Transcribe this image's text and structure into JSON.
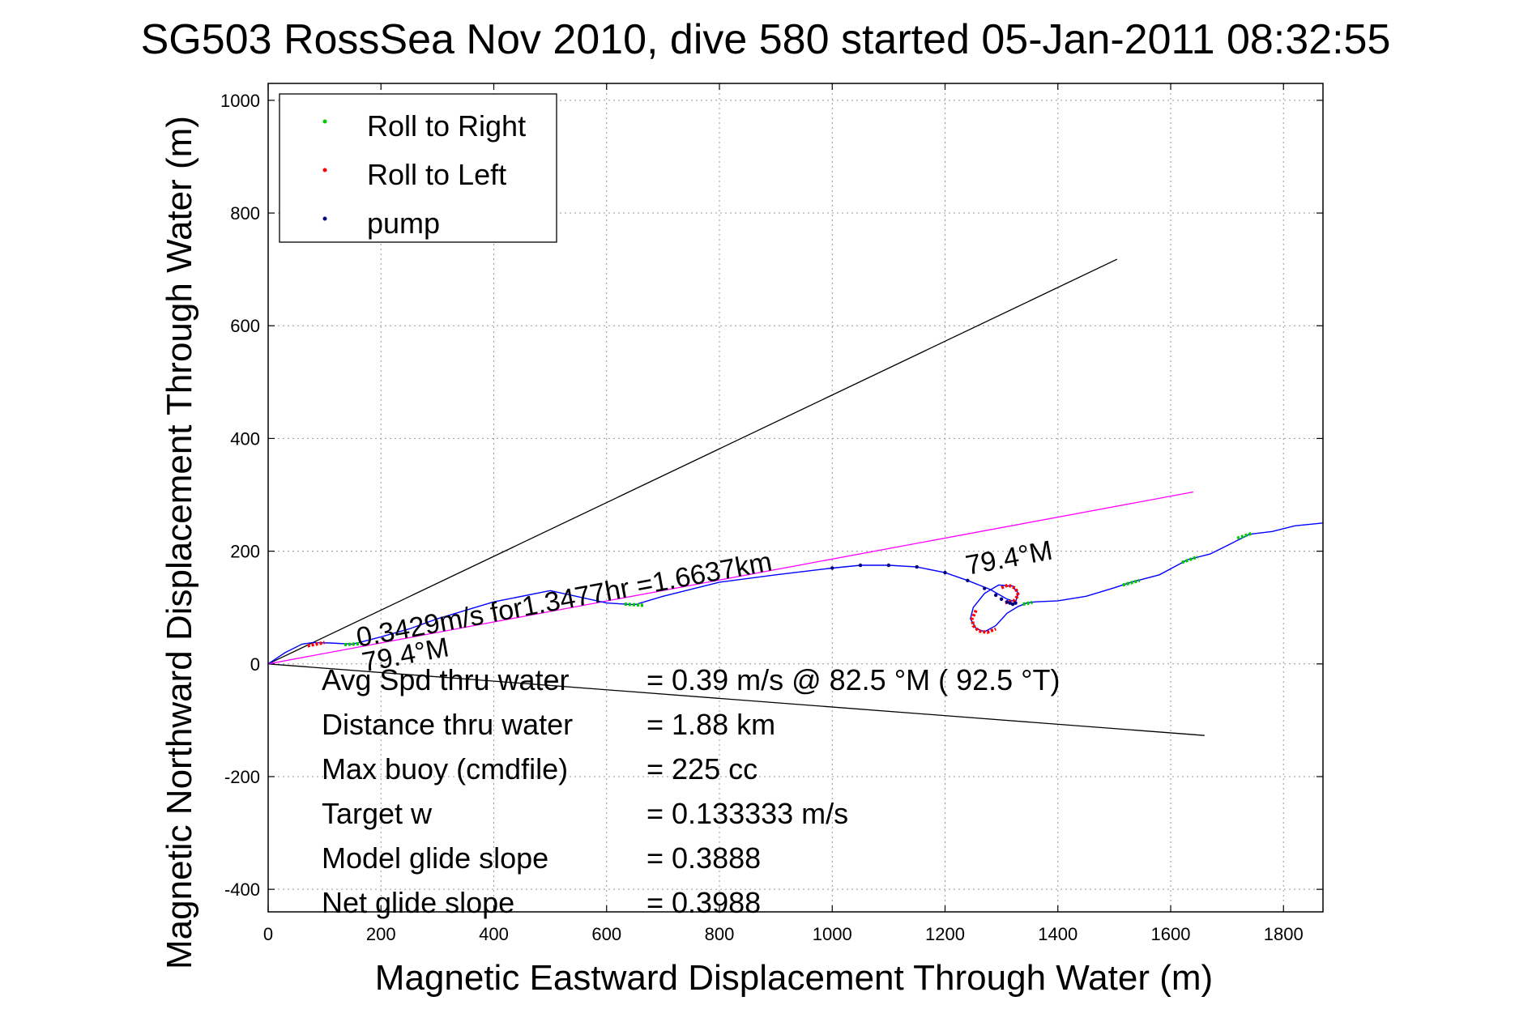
{
  "chart_data": {
    "type": "line",
    "title": "SG503 RossSea Nov 2010, dive 580 started 05-Jan-2011 08:32:55",
    "xlabel": "Magnetic Eastward Displacement Through Water (m)",
    "ylabel": "Magnetic Northward Displacement Through Water (m)",
    "xlim": [
      0,
      1870
    ],
    "ylim": [
      -440,
      1030
    ],
    "xticks": [
      0,
      200,
      400,
      600,
      800,
      1000,
      1200,
      1400,
      1600,
      1800
    ],
    "yticks": [
      -400,
      -200,
      0,
      200,
      400,
      600,
      800,
      1000
    ],
    "xtick_labels": [
      "0",
      "200",
      "400",
      "600",
      "800",
      "1000",
      "1200",
      "1400",
      "1600",
      "1800"
    ],
    "ytick_labels": [
      "-400",
      "-200",
      "0",
      "200",
      "400",
      "600",
      "800",
      "1000"
    ],
    "grid": true,
    "legend": {
      "position": "top-left",
      "entries": [
        {
          "label": "Roll to Right",
          "color": "#00cc00"
        },
        {
          "label": "Roll to Left",
          "color": "#ff0000"
        },
        {
          "label": "pump",
          "color": "#000080"
        }
      ]
    },
    "track": {
      "color": "#0000ff",
      "x": [
        0,
        30,
        60,
        80,
        110,
        150,
        200,
        250,
        300,
        400,
        500,
        600,
        650,
        700,
        800,
        900,
        1000,
        1050,
        1100,
        1150,
        1200,
        1240,
        1280,
        1310,
        1325,
        1330,
        1320,
        1295,
        1270,
        1250,
        1245,
        1255,
        1270,
        1290,
        1310,
        1330,
        1345,
        1360,
        1400,
        1450,
        1500,
        1530,
        1580,
        1630,
        1670,
        1700,
        1740,
        1780,
        1820,
        1870
      ],
      "y": [
        0,
        20,
        35,
        38,
        37,
        35,
        48,
        62,
        80,
        110,
        130,
        108,
        105,
        120,
        145,
        158,
        170,
        175,
        175,
        172,
        162,
        148,
        132,
        115,
        110,
        125,
        138,
        140,
        125,
        100,
        80,
        63,
        57,
        68,
        90,
        102,
        108,
        110,
        112,
        120,
        135,
        145,
        158,
        185,
        195,
        210,
        230,
        235,
        245,
        250
      ]
    },
    "roll_right_segments": [
      {
        "x": [
          135,
          165
        ],
        "y": [
          34,
          36
        ]
      },
      {
        "x": [
          632,
          665
        ],
        "y": [
          106,
          104
        ]
      },
      {
        "x": [
          1338,
          1355
        ],
        "y": [
          106,
          109
        ]
      },
      {
        "x": [
          1515,
          1545
        ],
        "y": [
          140,
          148
        ]
      },
      {
        "x": [
          1620,
          1648
        ],
        "y": [
          180,
          190
        ]
      },
      {
        "x": [
          1718,
          1745
        ],
        "y": [
          223,
          232
        ]
      }
    ],
    "roll_left_segments": [
      {
        "x": [
          70,
          100
        ],
        "y": [
          32,
          38
        ]
      },
      {
        "x": [
          1300,
          1312,
          1325,
          1330,
          1322,
          1305
        ],
        "y": [
          135,
          140,
          134,
          122,
          112,
          108
        ]
      },
      {
        "x": [
          1255,
          1248,
          1250,
          1260,
          1275,
          1290
        ],
        "y": [
          95,
          80,
          68,
          58,
          56,
          62
        ]
      }
    ],
    "pump_points": {
      "x": [
        1000,
        1050,
        1100,
        1150,
        1200,
        1240,
        1270,
        1290,
        1300,
        1310,
        1315,
        1320,
        1325
      ],
      "y": [
        170,
        175,
        175,
        172,
        162,
        148,
        134,
        122,
        115,
        110,
        108,
        106,
        108
      ]
    },
    "reference_lines": [
      {
        "color": "#000000",
        "x": [
          0,
          1505
        ],
        "y": [
          0,
          718
        ]
      },
      {
        "color": "#000000",
        "x": [
          0,
          1660
        ],
        "y": [
          0,
          -127
        ]
      },
      {
        "color": "#ff00ff",
        "x": [
          0,
          1640
        ],
        "y": [
          0,
          305
        ]
      }
    ],
    "annotations": [
      {
        "text": "0.3429m/s for1.3477hr =1.6637km",
        "x": 160,
        "y": 30,
        "angle_data": 10.5
      },
      {
        "text": "79.4°M",
        "x": 1240,
        "y": 158,
        "angle_data": 10.5
      },
      {
        "text": "79.4°M",
        "x": 170,
        "y": -14,
        "angle_data": 10.5
      }
    ],
    "stats": [
      {
        "label": "Avg Spd thru water",
        "value": "=  0.39 m/s @  82.5 °M ( 92.5 °T)"
      },
      {
        "label": "Distance thru water",
        "value": "=  1.88 km"
      },
      {
        "label": "Max buoy (cmdfile)",
        "value": "= 225 cc"
      },
      {
        "label": "Target w",
        "value": "= 0.133333 m/s"
      },
      {
        "label": "Model glide slope",
        "value": "= 0.3888"
      },
      {
        "label": "Net glide slope",
        "value": "= 0.3988"
      }
    ]
  }
}
